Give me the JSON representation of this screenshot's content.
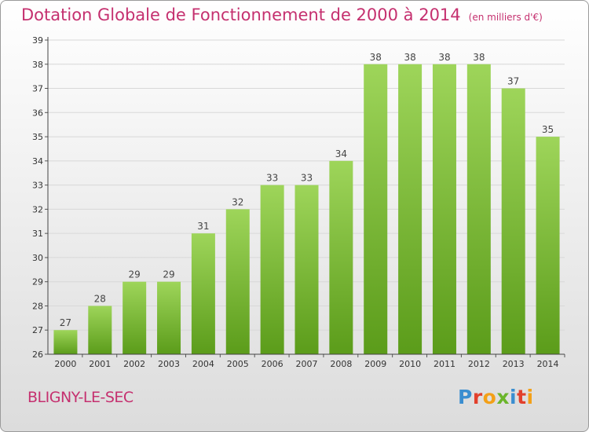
{
  "title": "Dotation Globale de Fonctionnement de 2000 à 2014",
  "unit_note": "(en milliers d'€)",
  "commune": "BLIGNY-LE-SEC",
  "logo": {
    "text": "Proxiti",
    "letters": [
      {
        "ch": "P",
        "color": "#3a8ed0"
      },
      {
        "ch": "r",
        "color": "#e2402c"
      },
      {
        "ch": "o",
        "color": "#f3a018"
      },
      {
        "ch": "x",
        "color": "#6bb52b"
      },
      {
        "ch": "i",
        "color": "#3a8ed0"
      },
      {
        "ch": "t",
        "color": "#e2402c"
      },
      {
        "ch": "i",
        "color": "#f3a018"
      }
    ]
  },
  "colors": {
    "title": "#c5306f",
    "bar_top": "#9ed55a",
    "bar_bottom": "#5b9c1a",
    "grid": "#d8d8d8"
  },
  "chart_data": {
    "type": "bar",
    "title": "Dotation Globale de Fonctionnement de 2000 à 2014",
    "categories": [
      "2000",
      "2001",
      "2002",
      "2003",
      "2004",
      "2005",
      "2006",
      "2007",
      "2008",
      "2009",
      "2010",
      "2011",
      "2012",
      "2013",
      "2014"
    ],
    "values": [
      27,
      28,
      29,
      29,
      31,
      32,
      33,
      33,
      34,
      38,
      38,
      38,
      38,
      37,
      35
    ],
    "ylim": [
      26,
      39
    ],
    "yticks": [
      26,
      27,
      28,
      29,
      30,
      31,
      32,
      33,
      34,
      35,
      36,
      37,
      38,
      39
    ],
    "xlabel": "",
    "ylabel": "",
    "grid": true
  }
}
